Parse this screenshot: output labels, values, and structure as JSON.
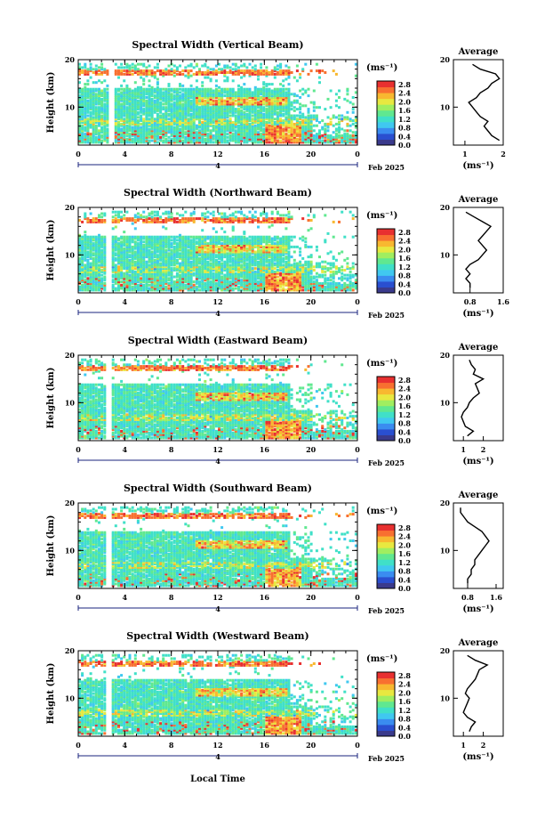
{
  "figure": {
    "xlabel": "Local Time",
    "date_label": "Feb 2025",
    "day_label": "4",
    "x_ticks": [
      "0",
      "4",
      "8",
      "12",
      "16",
      "20",
      "0"
    ],
    "y_ticks": [
      "20",
      "10"
    ],
    "ylabel": "Height (km)",
    "colorbar_unit": "(ms⁻¹)",
    "colorbar_ticks": [
      "2.8",
      "2.4",
      "2.0",
      "1.6",
      "1.2",
      "0.8",
      "0.4",
      "0.0"
    ],
    "avg_title": "Average",
    "avg_xlabel": "(ms⁻¹)"
  },
  "colors": {
    "colorbar": [
      "#3a3a8c",
      "#2a4fd0",
      "#3a8cf0",
      "#40c8f0",
      "#40e0c8",
      "#60e890",
      "#a0ee60",
      "#e8e840",
      "#f8b830",
      "#f87030",
      "#e83030"
    ]
  },
  "chart_data": [
    {
      "type": "heatmap",
      "title": "Spectral Width (Vertical Beam)",
      "xlabel": "Local Time",
      "ylabel": "Height (km)",
      "xlim": [
        0,
        24
      ],
      "ylim": [
        2,
        20
      ],
      "colorbar_range": [
        0.0,
        3.0
      ],
      "average_profile": {
        "xlim": [
          0.7,
          2.0
        ],
        "x_ticks": [
          "1",
          "2"
        ],
        "height": [
          3,
          4,
          5,
          6,
          7,
          8,
          9,
          10,
          11,
          12,
          13,
          14,
          15,
          16,
          17,
          18,
          19
        ],
        "value": [
          1.9,
          1.7,
          1.6,
          1.5,
          1.6,
          1.4,
          1.3,
          1.2,
          1.1,
          1.3,
          1.4,
          1.6,
          1.7,
          1.9,
          1.8,
          1.4,
          1.2
        ]
      }
    },
    {
      "type": "heatmap",
      "title": "Spectral Width (Northward Beam)",
      "xlabel": "Local Time",
      "ylabel": "Height (km)",
      "xlim": [
        0,
        24
      ],
      "ylim": [
        2,
        20
      ],
      "colorbar_range": [
        0.0,
        3.0
      ],
      "average_profile": {
        "xlim": [
          0.4,
          1.6
        ],
        "x_ticks": [
          "0.8",
          "1.6"
        ],
        "height": [
          3,
          4,
          5,
          6,
          7,
          8,
          9,
          10,
          11,
          12,
          13,
          14,
          15,
          16,
          17,
          18,
          19
        ],
        "value": [
          0.8,
          0.8,
          0.7,
          0.8,
          0.7,
          0.8,
          1.0,
          1.1,
          1.2,
          1.1,
          1.0,
          1.1,
          1.2,
          1.3,
          1.1,
          0.9,
          0.7
        ]
      }
    },
    {
      "type": "heatmap",
      "title": "Spectral Width (Eastward Beam)",
      "xlabel": "Local Time",
      "ylabel": "Height (km)",
      "xlim": [
        0,
        24
      ],
      "ylim": [
        2,
        20
      ],
      "colorbar_range": [
        0.0,
        3.0
      ],
      "average_profile": {
        "xlim": [
          0.5,
          3.0
        ],
        "x_ticks": [
          "1",
          "2"
        ],
        "height": [
          3,
          4,
          5,
          6,
          7,
          8,
          9,
          10,
          11,
          12,
          13,
          14,
          15,
          16,
          17,
          18,
          19
        ],
        "value": [
          1.2,
          1.5,
          1.1,
          1.0,
          0.9,
          1.0,
          1.2,
          1.3,
          1.5,
          1.8,
          1.7,
          1.6,
          2.0,
          1.5,
          1.6,
          1.4,
          1.3
        ]
      }
    },
    {
      "type": "heatmap",
      "title": "Spectral Width (Southward Beam)",
      "xlabel": "Local Time",
      "ylabel": "Height (km)",
      "xlim": [
        0,
        24
      ],
      "ylim": [
        2,
        20
      ],
      "colorbar_range": [
        0.0,
        3.0
      ],
      "average_profile": {
        "xlim": [
          0.4,
          1.8
        ],
        "x_ticks": [
          "0.8",
          "1.6"
        ],
        "height": [
          3,
          4,
          5,
          6,
          7,
          8,
          9,
          10,
          11,
          12,
          13,
          14,
          15,
          16,
          17,
          18,
          19
        ],
        "value": [
          0.8,
          0.8,
          0.9,
          0.9,
          1.0,
          1.0,
          1.1,
          1.2,
          1.3,
          1.4,
          1.3,
          1.2,
          1.0,
          0.8,
          0.7,
          0.6,
          0.6
        ]
      }
    },
    {
      "type": "heatmap",
      "title": "Spectral Width (Westward Beam)",
      "xlabel": "Local Time",
      "ylabel": "Height (km)",
      "xlim": [
        0,
        24
      ],
      "ylim": [
        2,
        20
      ],
      "colorbar_range": [
        0.0,
        3.0
      ],
      "average_profile": {
        "xlim": [
          0.5,
          3.0
        ],
        "x_ticks": [
          "1",
          "2"
        ],
        "height": [
          3,
          4,
          5,
          6,
          7,
          8,
          9,
          10,
          11,
          12,
          13,
          14,
          15,
          16,
          17,
          18,
          19
        ],
        "value": [
          1.3,
          1.4,
          1.6,
          1.2,
          1.0,
          1.1,
          1.2,
          1.3,
          1.1,
          1.2,
          1.4,
          1.6,
          1.7,
          1.8,
          2.2,
          1.6,
          1.2
        ]
      }
    }
  ]
}
